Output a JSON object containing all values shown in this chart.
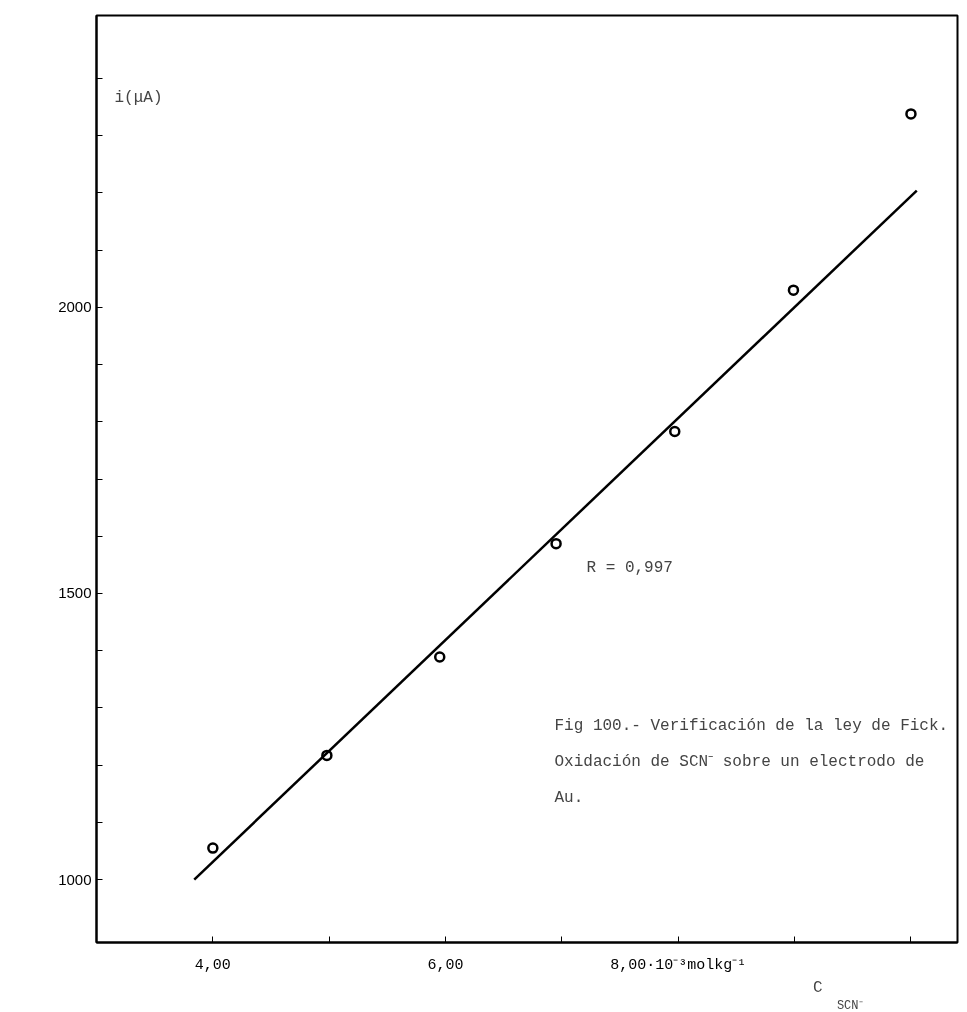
{
  "chart_data": {
    "type": "scatter",
    "ylabel": "i(μA)",
    "xlabel": "C$_{SCN⁻}$",
    "annotations": [
      "R = 0,997",
      "Fig 100.- Verificación de la ley de Fick.\nOxidación de SCN⁻ sobre un electrodo de\nAu."
    ],
    "marker": "circle",
    "grid": false,
    "xlim": [
      3.0,
      10.4
    ],
    "ylim": [
      890,
      2510
    ],
    "xticks": [
      {
        "value": 4,
        "label": "4,00"
      },
      {
        "value": 5,
        "label": null
      },
      {
        "value": 6,
        "label": "6,00"
      },
      {
        "value": 7,
        "label": null
      },
      {
        "value": 8,
        "label": "8,00·10⁻³molkg⁻¹"
      },
      {
        "value": 9,
        "label": null
      },
      {
        "value": 10,
        "label": null
      }
    ],
    "yticks": [
      1000,
      {
        "value": 1100,
        "label": null
      },
      {
        "value": 1200,
        "label": null
      },
      {
        "value": 1300,
        "label": null
      },
      {
        "value": 1400,
        "label": null
      },
      1500,
      {
        "value": 1600,
        "label": null
      },
      {
        "value": 1700,
        "label": null
      },
      {
        "value": 1800,
        "label": null
      },
      {
        "value": 1900,
        "label": null
      },
      2000,
      {
        "value": 2100,
        "label": null
      },
      {
        "value": 2200,
        "label": null
      },
      {
        "value": 2300,
        "label": null
      },
      {
        "value": 2400,
        "label": null
      }
    ],
    "series": [
      {
        "color": "#000000",
        "x": [
          4.0,
          4.98,
          5.95,
          6.95,
          7.97,
          8.99,
          10.0
        ],
        "values": [
          1055,
          1217,
          1389,
          1587,
          1783,
          2030,
          2338
        ]
      },
      {
        "type": "line",
        "color": "#000000",
        "marker": "none",
        "x": [
          3.84,
          10.05
        ],
        "values": [
          1000,
          2204
        ]
      }
    ]
  }
}
